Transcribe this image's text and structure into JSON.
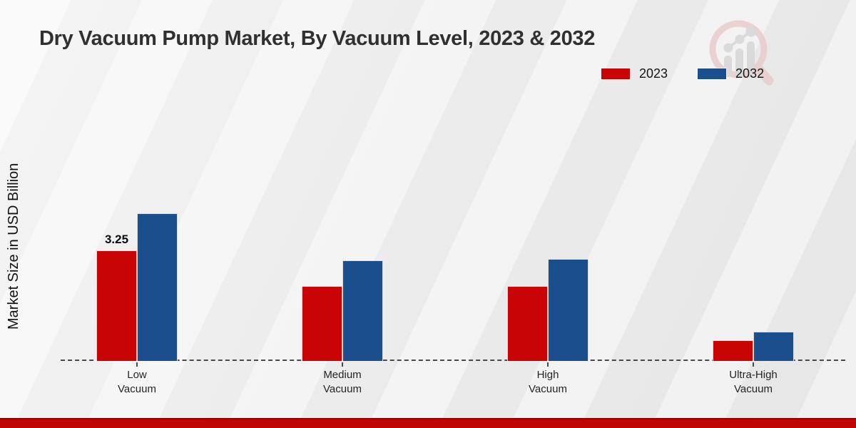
{
  "title": "Dry Vacuum Pump Market, By Vacuum Level, 2023 & 2032",
  "watermark_name": "market-research-magnifier-logo",
  "footer": {
    "color": "#c00505"
  },
  "chart_data": {
    "type": "bar",
    "title": "Dry Vacuum Pump Market, By Vacuum Level, 2023 & 2032",
    "xlabel": "",
    "ylabel": "Market Size in USD Billion",
    "categories": [
      "Low Vacuum",
      "Medium Vacuum",
      "High Vacuum",
      "Ultra-High Vacuum"
    ],
    "category_lines": [
      [
        "Low",
        "Vacuum"
      ],
      [
        "Medium",
        "Vacuum"
      ],
      [
        "High",
        "Vacuum"
      ],
      [
        "Ultra-High",
        "Vacuum"
      ]
    ],
    "series": [
      {
        "name": "2023",
        "color": "#c90404",
        "values": [
          3.25,
          2.2,
          2.2,
          0.6
        ]
      },
      {
        "name": "2032",
        "color": "#1a4e8c",
        "values": [
          4.35,
          2.95,
          3.0,
          0.85
        ]
      }
    ],
    "data_labels": [
      {
        "series": "2023",
        "category": "Low Vacuum",
        "label": "3.25"
      }
    ],
    "ylim": [
      0,
      5
    ],
    "grid": false,
    "legend_position": "top-right",
    "baseline_style": "dashed"
  }
}
